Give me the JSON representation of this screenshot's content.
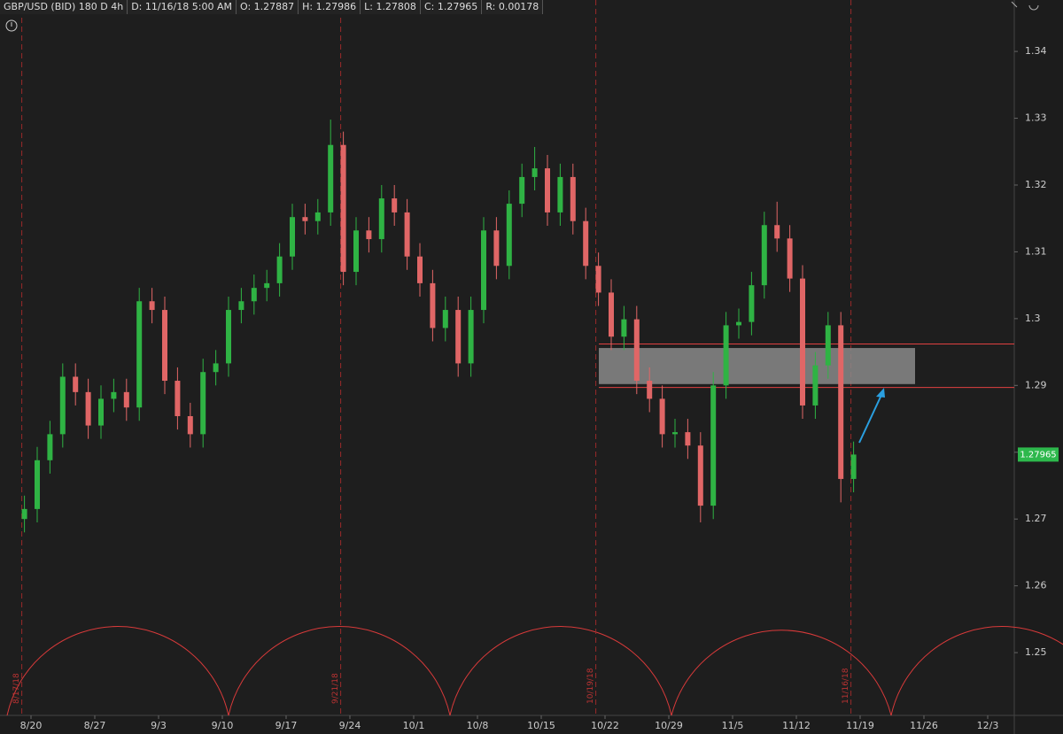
{
  "chart_data": {
    "type": "candlestick",
    "header": [
      "GBP/USD (BID) 180 D 4h",
      "D: 11/16/18 5:00 AM",
      "O: 1.27887",
      "H: 1.27986",
      "L: 1.27808",
      "C: 1.27965",
      "R: 0.00178"
    ],
    "categories": [
      "8/17",
      "8/20",
      "8/21",
      "8/22",
      "8/23",
      "8/24",
      "8/27",
      "8/28",
      "8/29",
      "8/30",
      "8/31",
      "9/3",
      "9/4",
      "9/5",
      "9/6",
      "9/7",
      "9/10",
      "9/11",
      "9/12",
      "9/13",
      "9/14",
      "9/17",
      "9/18",
      "9/19",
      "9/20",
      "9/21",
      "9/24",
      "9/25",
      "9/26",
      "9/27",
      "9/28",
      "10/1",
      "10/2",
      "10/3",
      "10/4",
      "10/5",
      "10/8",
      "10/9",
      "10/10",
      "10/11",
      "10/12",
      "10/15",
      "10/16",
      "10/17",
      "10/18",
      "10/19",
      "10/22",
      "10/23",
      "10/24",
      "10/25",
      "10/26",
      "10/29",
      "10/30",
      "10/31",
      "11/1",
      "11/2",
      "11/5",
      "11/6",
      "11/7",
      "11/8",
      "11/9",
      "11/12",
      "11/13",
      "11/14",
      "11/15",
      "11/16"
    ],
    "open": [
      1.27,
      1.2715,
      1.2788,
      1.2827,
      1.2913,
      1.289,
      1.284,
      1.288,
      1.289,
      1.2867,
      1.3026,
      1.3013,
      1.2907,
      1.2854,
      1.2827,
      1.292,
      1.2933,
      1.3013,
      1.3026,
      1.3046,
      1.3053,
      1.3093,
      1.3152,
      1.3146,
      1.3159,
      1.326,
      1.307,
      1.3132,
      1.3119,
      1.318,
      1.3159,
      1.3093,
      1.3053,
      1.2986,
      1.3013,
      1.2933,
      1.3013,
      1.3132,
      1.3079,
      1.3172,
      1.3212,
      1.3225,
      1.3159,
      1.3212,
      1.3146,
      1.3079,
      1.3039,
      1.2973,
      1.2999,
      1.2907,
      1.288,
      1.2827,
      1.283,
      1.281,
      1.272,
      1.29,
      1.299,
      1.2995,
      1.305,
      1.314,
      1.312,
      1.306,
      1.287,
      1.293,
      1.299,
      1.276
    ],
    "high": [
      1.2735,
      1.2808,
      1.2847,
      1.2933,
      1.2933,
      1.291,
      1.29,
      1.291,
      1.291,
      1.3046,
      1.3046,
      1.3033,
      1.2927,
      1.2874,
      1.294,
      1.2953,
      1.3033,
      1.3046,
      1.3066,
      1.3073,
      1.3113,
      1.3172,
      1.3172,
      1.3179,
      1.3298,
      1.328,
      1.3152,
      1.3152,
      1.32,
      1.32,
      1.3179,
      1.3113,
      1.3073,
      1.3033,
      1.3033,
      1.3033,
      1.3152,
      1.3152,
      1.3192,
      1.3232,
      1.3257,
      1.3245,
      1.3232,
      1.3232,
      1.3166,
      1.3099,
      1.3059,
      1.3019,
      1.3019,
      1.2927,
      1.29,
      1.285,
      1.285,
      1.283,
      1.292,
      1.301,
      1.3015,
      1.307,
      1.316,
      1.3175,
      1.314,
      1.308,
      1.295,
      1.301,
      1.301,
      1.2816
    ],
    "low": [
      1.268,
      1.2695,
      1.2768,
      1.2807,
      1.287,
      1.282,
      1.282,
      1.286,
      1.2847,
      1.2847,
      1.2993,
      1.2887,
      1.2834,
      1.2807,
      1.2807,
      1.29,
      1.2913,
      1.2993,
      1.3006,
      1.3026,
      1.3033,
      1.3073,
      1.3126,
      1.3126,
      1.3139,
      1.305,
      1.305,
      1.3099,
      1.3099,
      1.3139,
      1.3073,
      1.3033,
      1.2966,
      1.2966,
      1.2913,
      1.2913,
      1.2993,
      1.3059,
      1.3059,
      1.3152,
      1.3192,
      1.3139,
      1.3139,
      1.3126,
      1.3059,
      1.3019,
      1.2953,
      1.2953,
      1.2887,
      1.286,
      1.2807,
      1.2807,
      1.279,
      1.2695,
      1.27,
      1.288,
      1.297,
      1.2975,
      1.303,
      1.31,
      1.304,
      1.285,
      1.285,
      1.291,
      1.2725,
      1.274
    ],
    "close": [
      1.2715,
      1.2788,
      1.2827,
      1.2913,
      1.289,
      1.284,
      1.288,
      1.289,
      1.2867,
      1.3026,
      1.3013,
      1.2907,
      1.2854,
      1.2827,
      1.292,
      1.2933,
      1.3013,
      1.3026,
      1.3046,
      1.3053,
      1.3093,
      1.3152,
      1.3146,
      1.3159,
      1.326,
      1.307,
      1.3132,
      1.3119,
      1.318,
      1.3159,
      1.3093,
      1.3053,
      1.2986,
      1.3013,
      1.2933,
      1.3013,
      1.3132,
      1.3079,
      1.3172,
      1.3212,
      1.3225,
      1.3159,
      1.3212,
      1.3146,
      1.3079,
      1.3039,
      1.2973,
      1.2999,
      1.2907,
      1.288,
      1.2827,
      1.283,
      1.281,
      1.272,
      1.29,
      1.299,
      1.2995,
      1.305,
      1.314,
      1.312,
      1.306,
      1.287,
      1.293,
      1.299,
      1.276,
      1.27965
    ],
    "up_color": "#2fb344",
    "down_color": "#e06666",
    "ylim": [
      1.2406,
      1.3477
    ],
    "yticks": [
      1.25,
      1.26,
      1.27,
      1.28,
      1.29,
      1.3,
      1.31,
      1.32,
      1.33,
      1.34
    ],
    "xticks": [
      "8/20",
      "8/27",
      "9/3",
      "9/10",
      "9/17",
      "9/24",
      "10/1",
      "10/8",
      "10/15",
      "10/22",
      "10/29",
      "11/5",
      "11/12",
      "11/19",
      "11/26",
      "12/3"
    ],
    "cycle_dates": [
      "8/17/18",
      "9/21/18",
      "10/19/18",
      "11/16/18"
    ],
    "zone": [
      1.2956,
      1.2902
    ],
    "levels": [
      1.2962,
      1.2897
    ]
  }
}
